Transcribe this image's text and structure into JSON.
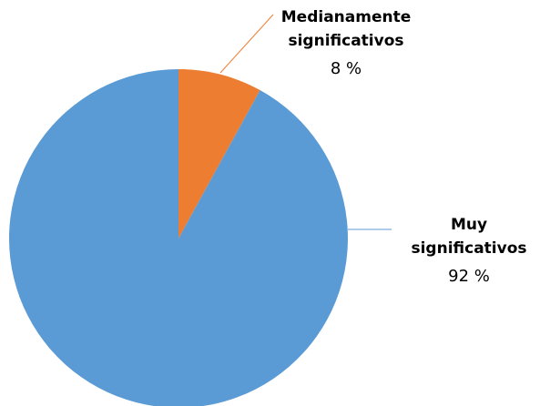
{
  "chart_data": {
    "type": "pie",
    "categories": [
      "Medianamente significativos",
      "Muy significativos"
    ],
    "values": [
      8,
      92
    ],
    "value_labels": [
      "8 %",
      "92 %"
    ],
    "colors": [
      "#ed7d31",
      "#5b9bd5"
    ]
  }
}
